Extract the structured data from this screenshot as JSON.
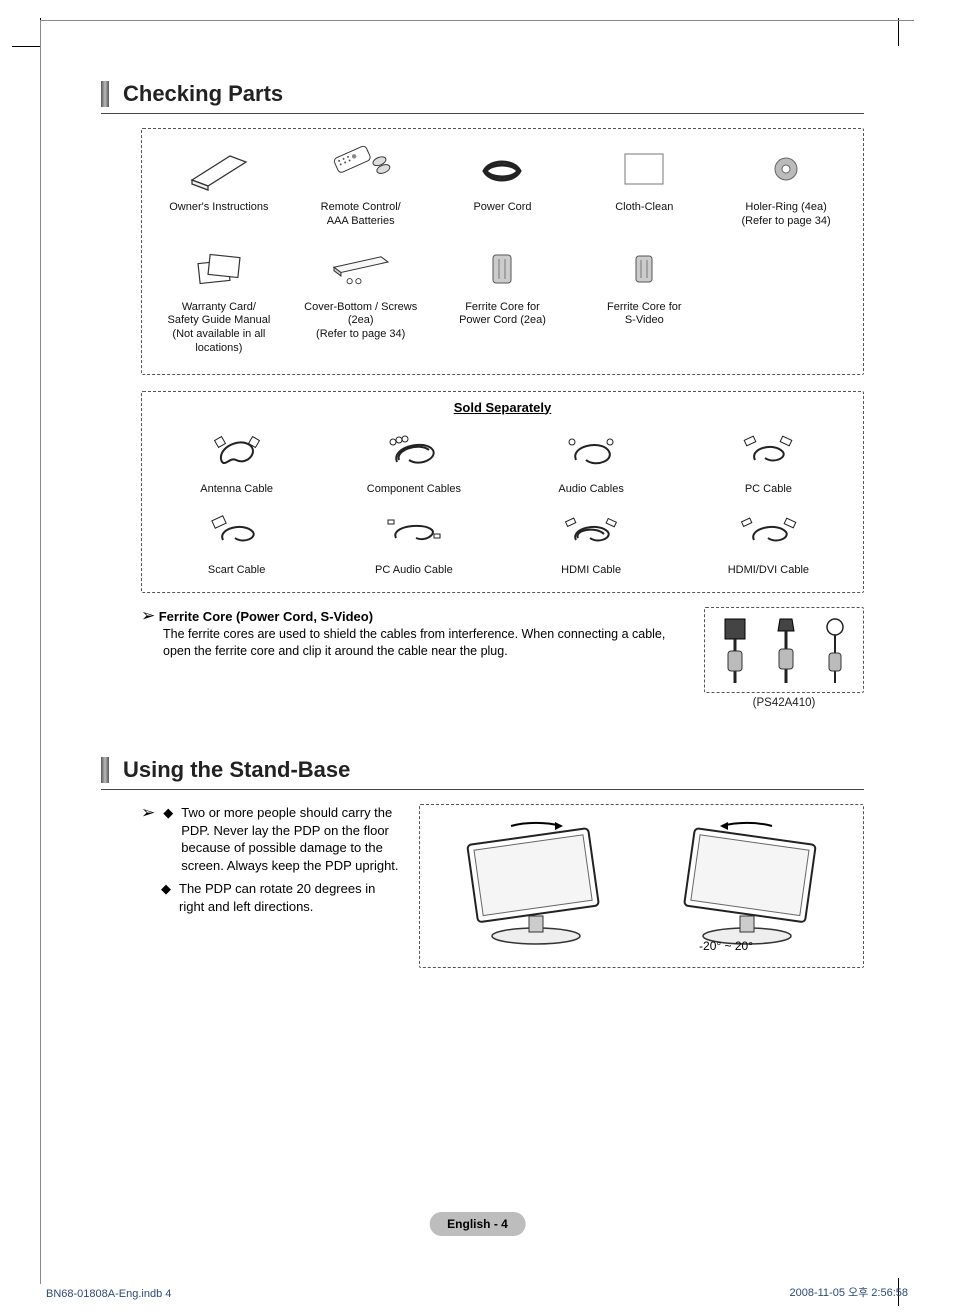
{
  "heading1": "Checking Parts",
  "heading2": "Using the Stand-Base",
  "parts": {
    "row1": [
      {
        "label": "Owner's Instructions"
      },
      {
        "label": "Remote Control/\nAAA Batteries"
      },
      {
        "label": "Power Cord"
      },
      {
        "label": "Cloth-Clean"
      },
      {
        "label": "Holer-Ring (4ea)\n(Refer to page 34)"
      }
    ],
    "row2": [
      {
        "label": "Warranty Card/\nSafety Guide Manual\n(Not available in all\nlocations)"
      },
      {
        "label": "Cover-Bottom / Screws\n(2ea)\n(Refer to page 34)"
      },
      {
        "label": "Ferrite Core for\nPower Cord (2ea)"
      },
      {
        "label": "Ferrite Core for\nS-Video"
      },
      {
        "label": ""
      }
    ]
  },
  "separate": {
    "title": "Sold Separately",
    "row1": [
      {
        "label": "Antenna Cable"
      },
      {
        "label": "Component Cables"
      },
      {
        "label": "Audio Cables"
      },
      {
        "label": "PC Cable"
      }
    ],
    "row2": [
      {
        "label": "Scart Cable"
      },
      {
        "label": "PC Audio Cable"
      },
      {
        "label": "HDMI Cable"
      },
      {
        "label": "HDMI/DVI Cable"
      }
    ]
  },
  "ferrite": {
    "heading": "Ferrite Core (Power Cord, S-Video)",
    "body": "The ferrite cores are used to shield the cables from interference. When connecting a cable, open the ferrite core and clip it around the cable near the plug.",
    "model": "(PS42A410)"
  },
  "stand": {
    "bullet1": "Two or more people should carry the PDP. Never lay the PDP on the floor because of possible damage to the screen. Always keep the PDP upright.",
    "bullet2": "The PDP can rotate 20 degrees in right and left directions.",
    "angle": "-20° ~ 20°"
  },
  "page_badge": "English - 4",
  "footer": {
    "left": "BN68-01808A-Eng.indb   4",
    "right": "2008-11-05   오후 2:56:58"
  }
}
